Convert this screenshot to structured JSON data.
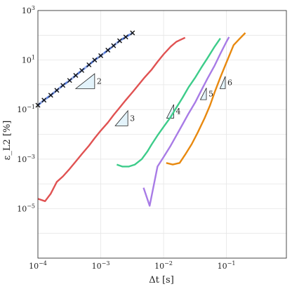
{
  "chart_data": {
    "type": "line",
    "title": "",
    "xlabel": "Δt [s]",
    "ylabel": "ε_L2 [%]",
    "x_scale": "log",
    "y_scale": "log",
    "xlim": [
      0.0001,
      0.9
    ],
    "ylim": [
      1e-07,
      1000
    ],
    "x_ticks": [
      {
        "base": "10",
        "exp": "−4",
        "value": 0.0001
      },
      {
        "base": "10",
        "exp": "−3",
        "value": 0.001
      },
      {
        "base": "10",
        "exp": "−2",
        "value": 0.01
      },
      {
        "base": "10",
        "exp": "−1",
        "value": 0.1
      }
    ],
    "y_ticks": [
      {
        "base": "10",
        "exp": "−5",
        "value": 1e-05
      },
      {
        "base": "10",
        "exp": "−3",
        "value": 0.001
      },
      {
        "base": "10",
        "exp": "−1",
        "value": 0.1
      },
      {
        "base": "10",
        "exp": "1",
        "value": 10
      },
      {
        "base": "10",
        "exp": "3",
        "value": 1000
      }
    ],
    "grid": true,
    "legend": "none",
    "series": [
      {
        "color": "#4a72d9",
        "style": "dashed-with-cross-markers",
        "x": [
          0.0001,
          0.000125,
          0.00016,
          0.0002,
          0.00025,
          0.00032,
          0.0004,
          0.0005,
          0.00065,
          0.0008,
          0.001,
          0.0013,
          0.0016,
          0.002,
          0.0025,
          0.0032
        ],
        "y": [
          0.15,
          0.24,
          0.38,
          0.6,
          0.95,
          1.5,
          2.4,
          3.8,
          6.4,
          10,
          15,
          25,
          38,
          60,
          85,
          125
        ]
      },
      {
        "color": "#e05252",
        "style": "solid",
        "x": [
          0.0001,
          0.00013,
          0.00016,
          0.0002,
          0.00025,
          0.00032,
          0.0004,
          0.0005,
          0.00065,
          0.0008,
          0.001,
          0.0013,
          0.0016,
          0.002,
          0.0025,
          0.0032,
          0.004,
          0.005,
          0.0065,
          0.008,
          0.01,
          0.013,
          0.016,
          0.022
        ],
        "y": [
          2.5e-05,
          2e-05,
          4e-05,
          0.00012,
          0.0002,
          0.0004,
          0.0008,
          0.0016,
          0.0035,
          0.007,
          0.014,
          0.03,
          0.06,
          0.12,
          0.24,
          0.5,
          1.0,
          2.0,
          4.2,
          8.5,
          17,
          35,
          55,
          80
        ]
      },
      {
        "color": "#3dcc8a",
        "style": "solid",
        "x": [
          0.0018,
          0.0022,
          0.0028,
          0.0035,
          0.0045,
          0.0055,
          0.0065,
          0.008,
          0.01,
          0.013,
          0.016,
          0.02,
          0.025,
          0.032,
          0.04,
          0.05,
          0.065,
          0.08
        ],
        "y": [
          0.0006,
          0.0005,
          0.0005,
          0.0006,
          0.001,
          0.002,
          0.004,
          0.009,
          0.02,
          0.05,
          0.12,
          0.3,
          0.8,
          2.0,
          5.0,
          12,
          35,
          75
        ]
      },
      {
        "color": "#a87be6",
        "style": "solid",
        "x": [
          0.0048,
          0.006,
          0.008,
          0.01,
          0.013,
          0.016,
          0.02,
          0.025,
          0.032,
          0.04,
          0.05,
          0.065,
          0.08,
          0.1,
          0.11
        ],
        "y": [
          7e-05,
          1.3e-05,
          0.0005,
          0.0012,
          0.0035,
          0.009,
          0.025,
          0.07,
          0.2,
          0.6,
          1.8,
          6,
          18,
          55,
          85
        ]
      },
      {
        "color": "#e8890f",
        "style": "solid",
        "x": [
          0.011,
          0.014,
          0.018,
          0.022,
          0.028,
          0.035,
          0.045,
          0.055,
          0.065,
          0.08,
          0.1,
          0.13,
          0.16,
          0.2
        ],
        "y": [
          0.0007,
          0.0006,
          0.0007,
          0.0015,
          0.004,
          0.012,
          0.045,
          0.15,
          0.5,
          2.0,
          8,
          40,
          70,
          125
        ]
      }
    ],
    "slope_triangles": [
      {
        "label": "2",
        "x0": 0.0004,
        "x1": 0.0008,
        "y0": 0.7,
        "y1": 2.8
      },
      {
        "label": "3",
        "x0": 0.0017,
        "x1": 0.0027,
        "y0": 0.022,
        "y1": 0.09
      },
      {
        "label": "4",
        "x0": 0.0112,
        "x1": 0.0145,
        "y0": 0.045,
        "y1": 0.16
      },
      {
        "label": "5",
        "x0": 0.0385,
        "x1": 0.048,
        "y0": 0.25,
        "y1": 0.75
      },
      {
        "label": "6",
        "x0": 0.079,
        "x1": 0.096,
        "y0": 0.7,
        "y1": 2.2
      }
    ]
  }
}
